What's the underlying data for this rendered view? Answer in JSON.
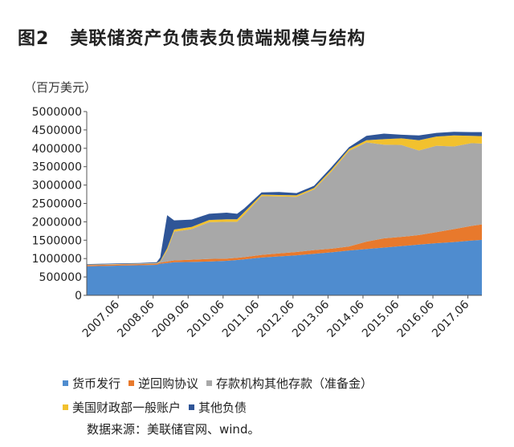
{
  "header": {
    "figure_num": "图2",
    "title": "美联储资产负债表负债端规模与结构",
    "unit": "（百万美元）"
  },
  "source": "数据来源：美联储官网、wind。",
  "colors": {
    "currency": "#4f8ccf",
    "reverse_repo": "#e8792c",
    "deposits": "#a8a8a8",
    "treasury": "#f2c12e",
    "other": "#2f5597"
  },
  "chart_data": {
    "type": "area",
    "stacked": true,
    "title": "美联储资产负债表负债端规模与结构",
    "ylabel": "（百万美元）",
    "ylim": [
      0,
      5000000
    ],
    "yticks": [
      0,
      500000,
      1000000,
      1500000,
      2000000,
      2500000,
      3000000,
      3500000,
      4000000,
      4500000,
      5000000
    ],
    "xlim": [
      2006.5,
      2017.8
    ],
    "xticks": [
      {
        "x": 2007.4,
        "label": "2007.06"
      },
      {
        "x": 2008.4,
        "label": "2008.06"
      },
      {
        "x": 2009.4,
        "label": "2009.06"
      },
      {
        "x": 2010.4,
        "label": "2010.06"
      },
      {
        "x": 2011.4,
        "label": "2011.06"
      },
      {
        "x": 2012.4,
        "label": "2012.06"
      },
      {
        "x": 2013.4,
        "label": "2013.06"
      },
      {
        "x": 2014.4,
        "label": "2014.06"
      },
      {
        "x": 2015.4,
        "label": "2015.06"
      },
      {
        "x": 2016.4,
        "label": "2016.06"
      },
      {
        "x": 2017.4,
        "label": "2017.06"
      }
    ],
    "x": [
      2006.5,
      2007.0,
      2007.5,
      2008.0,
      2008.5,
      2008.6,
      2008.8,
      2009.0,
      2009.5,
      2010.0,
      2010.5,
      2010.8,
      2011.0,
      2011.5,
      2012.0,
      2012.5,
      2013.0,
      2013.5,
      2014.0,
      2014.5,
      2015.0,
      2015.5,
      2016.0,
      2016.5,
      2017.0,
      2017.5,
      2017.8
    ],
    "series": [
      {
        "name": "货币发行",
        "values": [
          790000,
          800000,
          810000,
          820000,
          830000,
          860000,
          880000,
          900000,
          910000,
          920000,
          940000,
          960000,
          980000,
          1030000,
          1060000,
          1090000,
          1130000,
          1170000,
          1220000,
          1260000,
          1300000,
          1340000,
          1380000,
          1420000,
          1450000,
          1490000,
          1510000
        ]
      },
      {
        "name": "逆回购协议",
        "values": [
          30000,
          30000,
          30000,
          30000,
          30000,
          30000,
          40000,
          50000,
          60000,
          70000,
          60000,
          60000,
          60000,
          70000,
          80000,
          90000,
          100000,
          100000,
          110000,
          200000,
          250000,
          250000,
          260000,
          300000,
          350000,
          400000,
          420000
        ]
      },
      {
        "name": "存款机构其他存款（准备金）",
        "values": [
          10000,
          10000,
          10000,
          10000,
          10000,
          20000,
          300000,
          780000,
          830000,
          1000000,
          1000000,
          980000,
          1150000,
          1600000,
          1550000,
          1500000,
          1650000,
          2100000,
          2600000,
          2700000,
          2550000,
          2500000,
          2300000,
          2350000,
          2250000,
          2250000,
          2200000
        ]
      },
      {
        "name": "美国财政部一般账户",
        "values": [
          5000,
          5000,
          5000,
          5000,
          10000,
          20000,
          60000,
          60000,
          60000,
          60000,
          70000,
          70000,
          70000,
          40000,
          40000,
          40000,
          40000,
          50000,
          50000,
          60000,
          150000,
          180000,
          280000,
          250000,
          300000,
          200000,
          200000
        ]
      },
      {
        "name": "其他负债",
        "values": [
          15000,
          15000,
          15000,
          15000,
          20000,
          100000,
          900000,
          250000,
          200000,
          170000,
          180000,
          150000,
          100000,
          60000,
          80000,
          60000,
          60000,
          70000,
          50000,
          120000,
          150000,
          100000,
          130000,
          100000,
          100000,
          100000,
          110000
        ]
      }
    ]
  }
}
